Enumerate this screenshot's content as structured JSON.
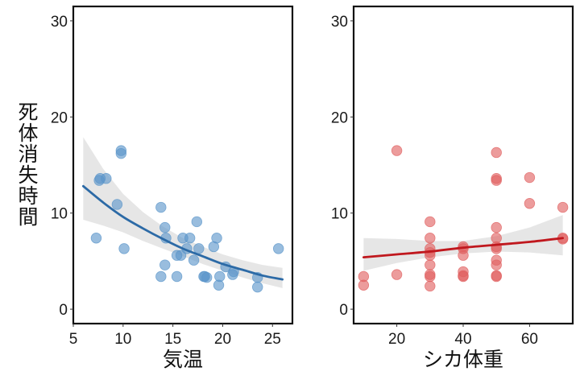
{
  "figure": {
    "ylabel": "死体消失時間",
    "ylabel_chars": [
      "死",
      "体",
      "消",
      "失",
      "時",
      "間"
    ]
  },
  "chart_data": [
    {
      "type": "scatter",
      "panel": "left",
      "title": "",
      "xlabel": "気温",
      "ylabel": "死体消失時間",
      "xlim": [
        5,
        27
      ],
      "ylim": [
        -1.5,
        31.5
      ],
      "xticks": [
        5,
        10,
        15,
        20,
        25
      ],
      "yticks": [
        0,
        10,
        20,
        30
      ],
      "grid": false,
      "point_color": "#5b95c9",
      "line_color": "#2c6aa6",
      "band_color": "#e6e6e6",
      "points": [
        {
          "x": 7.3,
          "y": 7.4
        },
        {
          "x": 7.6,
          "y": 13.4
        },
        {
          "x": 7.7,
          "y": 13.6
        },
        {
          "x": 8.3,
          "y": 13.6
        },
        {
          "x": 9.4,
          "y": 10.9
        },
        {
          "x": 9.8,
          "y": 16.5
        },
        {
          "x": 9.8,
          "y": 16.2
        },
        {
          "x": 10.1,
          "y": 6.3
        },
        {
          "x": 13.8,
          "y": 10.6
        },
        {
          "x": 14.2,
          "y": 8.5
        },
        {
          "x": 14.3,
          "y": 7.4
        },
        {
          "x": 14.2,
          "y": 4.6
        },
        {
          "x": 13.8,
          "y": 3.4
        },
        {
          "x": 15.4,
          "y": 3.4
        },
        {
          "x": 15.4,
          "y": 5.6
        },
        {
          "x": 15.8,
          "y": 5.6
        },
        {
          "x": 16.0,
          "y": 7.4
        },
        {
          "x": 16.4,
          "y": 6.3
        },
        {
          "x": 16.7,
          "y": 7.4
        },
        {
          "x": 17.1,
          "y": 5.1
        },
        {
          "x": 17.4,
          "y": 9.1
        },
        {
          "x": 17.6,
          "y": 6.3
        },
        {
          "x": 18.1,
          "y": 3.4
        },
        {
          "x": 18.2,
          "y": 3.4
        },
        {
          "x": 18.4,
          "y": 3.3
        },
        {
          "x": 19.1,
          "y": 6.5
        },
        {
          "x": 19.4,
          "y": 7.4
        },
        {
          "x": 19.7,
          "y": 3.4
        },
        {
          "x": 19.6,
          "y": 2.5
        },
        {
          "x": 20.3,
          "y": 4.4
        },
        {
          "x": 21.0,
          "y": 3.6
        },
        {
          "x": 21.1,
          "y": 3.9
        },
        {
          "x": 23.5,
          "y": 3.3
        },
        {
          "x": 23.5,
          "y": 2.3
        },
        {
          "x": 25.6,
          "y": 6.3
        }
      ],
      "fit": {
        "x": [
          6,
          8,
          10,
          12,
          14,
          16,
          18,
          20,
          22,
          24,
          26
        ],
        "y": [
          12.8,
          11.1,
          9.6,
          8.4,
          7.3,
          6.3,
          5.5,
          4.7,
          4.1,
          3.5,
          3.1
        ],
        "lower": [
          9.3,
          8.7,
          8.0,
          7.1,
          6.3,
          5.5,
          4.7,
          4.0,
          3.3,
          2.7,
          2.2
        ],
        "upper": [
          17.9,
          14.6,
          12.0,
          10.1,
          8.6,
          7.4,
          6.5,
          5.7,
          5.1,
          4.6,
          4.3
        ]
      }
    },
    {
      "type": "scatter",
      "panel": "right",
      "title": "",
      "xlabel": "シカ体重",
      "ylabel": "",
      "xlim": [
        7,
        73
      ],
      "ylim": [
        -1.5,
        31.5
      ],
      "xticks": [
        20,
        40,
        60
      ],
      "yticks": [
        0,
        10,
        20,
        30
      ],
      "grid": false,
      "point_color": "#e06060",
      "line_color": "#c0181e",
      "band_color": "#e6e6e6",
      "points": [
        {
          "x": 10,
          "y": 3.4
        },
        {
          "x": 10,
          "y": 2.5
        },
        {
          "x": 20,
          "y": 16.5
        },
        {
          "x": 20,
          "y": 3.6
        },
        {
          "x": 30,
          "y": 9.1
        },
        {
          "x": 30,
          "y": 7.4
        },
        {
          "x": 30,
          "y": 6.3
        },
        {
          "x": 30,
          "y": 5.9
        },
        {
          "x": 30,
          "y": 5.6
        },
        {
          "x": 30,
          "y": 4.6
        },
        {
          "x": 30,
          "y": 3.6
        },
        {
          "x": 30,
          "y": 3.4
        },
        {
          "x": 30,
          "y": 2.4
        },
        {
          "x": 40,
          "y": 6.5
        },
        {
          "x": 40,
          "y": 6.3
        },
        {
          "x": 40,
          "y": 5.6
        },
        {
          "x": 40,
          "y": 3.9
        },
        {
          "x": 40,
          "y": 3.5
        },
        {
          "x": 40,
          "y": 3.4
        },
        {
          "x": 50,
          "y": 16.3
        },
        {
          "x": 50,
          "y": 13.6
        },
        {
          "x": 50,
          "y": 13.4
        },
        {
          "x": 50,
          "y": 8.5
        },
        {
          "x": 50,
          "y": 7.4
        },
        {
          "x": 50,
          "y": 6.5
        },
        {
          "x": 50,
          "y": 6.3
        },
        {
          "x": 50,
          "y": 5.1
        },
        {
          "x": 50,
          "y": 4.6
        },
        {
          "x": 50,
          "y": 3.5
        },
        {
          "x": 50,
          "y": 3.4
        },
        {
          "x": 60,
          "y": 13.7
        },
        {
          "x": 60,
          "y": 11.0
        },
        {
          "x": 70,
          "y": 10.6
        },
        {
          "x": 70,
          "y": 7.4
        },
        {
          "x": 70,
          "y": 7.3
        }
      ],
      "fit": {
        "x": [
          10,
          20,
          30,
          40,
          50,
          60,
          70
        ],
        "y": [
          5.4,
          5.7,
          6.0,
          6.4,
          6.7,
          7.0,
          7.4
        ],
        "lower": [
          4.0,
          4.8,
          5.4,
          5.8,
          6.0,
          5.9,
          5.6
        ],
        "upper": [
          7.4,
          7.3,
          7.1,
          7.1,
          7.6,
          8.5,
          9.8
        ]
      }
    }
  ]
}
